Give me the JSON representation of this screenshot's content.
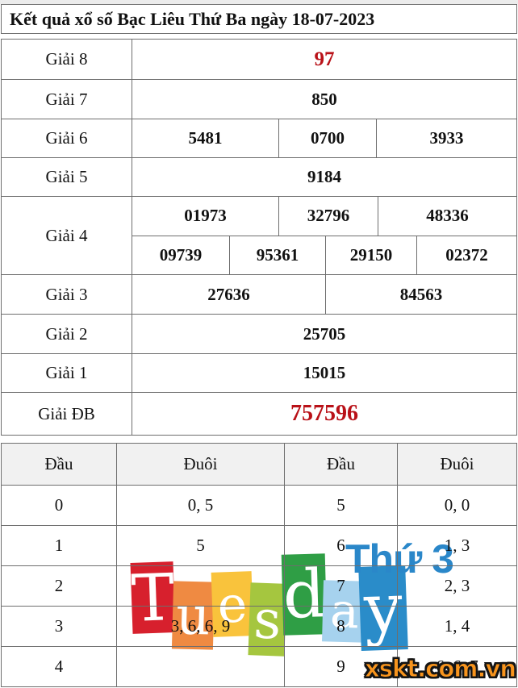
{
  "title": "Kết quả xổ số Bạc Liêu Thứ Ba ngày 18-07-2023",
  "prize_table": {
    "rows": [
      {
        "label": "Giải 8",
        "values": [
          "97"
        ]
      },
      {
        "label": "Giải 7",
        "values": [
          "850"
        ]
      },
      {
        "label": "Giải 6",
        "values": [
          "5481",
          "0700",
          "3933"
        ]
      },
      {
        "label": "Giải 5",
        "values": [
          "9184"
        ]
      },
      {
        "label": "Giải 4",
        "values_row1": [
          "01973",
          "32796",
          "48336"
        ],
        "values_row2": [
          "09739",
          "95361",
          "29150",
          "02372"
        ]
      },
      {
        "label": "Giải 3",
        "values": [
          "27636",
          "84563"
        ]
      },
      {
        "label": "Giải 2",
        "values": [
          "25705"
        ]
      },
      {
        "label": "Giải 1",
        "values": [
          "15015"
        ]
      },
      {
        "label": "Giải ĐB",
        "values": [
          "757596"
        ]
      }
    ]
  },
  "tails_table": {
    "headers": [
      "Đầu",
      "Đuôi",
      "Đầu",
      "Đuôi"
    ],
    "rows": [
      [
        "0",
        "0, 5",
        "5",
        "0, 0"
      ],
      [
        "1",
        "5",
        "6",
        "1, 3"
      ],
      [
        "2",
        "",
        "7",
        "2, 3"
      ],
      [
        "3",
        "3, 6, 6, 9",
        "8",
        "1, 4"
      ],
      [
        "4",
        "",
        "9",
        "6, 6, 7"
      ]
    ]
  },
  "watermark": {
    "word": "Tuesday",
    "letters": [
      {
        "char": "T",
        "tile_color": "#d7202d"
      },
      {
        "char": "u",
        "tile_color": "#ef8a42"
      },
      {
        "char": "e",
        "tile_color": "#f9c33c"
      },
      {
        "char": "s",
        "tile_color": "#a5c63f"
      },
      {
        "char": "d",
        "tile_color": "#2f9e45"
      },
      {
        "char": "a",
        "tile_color": "#a6d2ee"
      },
      {
        "char": "y",
        "tile_color": "#2a8cc9"
      }
    ],
    "day_label": "Thứ 3",
    "day_label_color": "#2a87c9"
  },
  "logo": {
    "text": "xskt.com.vn",
    "color": "#f7941d"
  },
  "colors": {
    "highlight_red": "#b91118",
    "border_gray": "#6e6e6e",
    "header_bg": "#f1f1f1"
  }
}
